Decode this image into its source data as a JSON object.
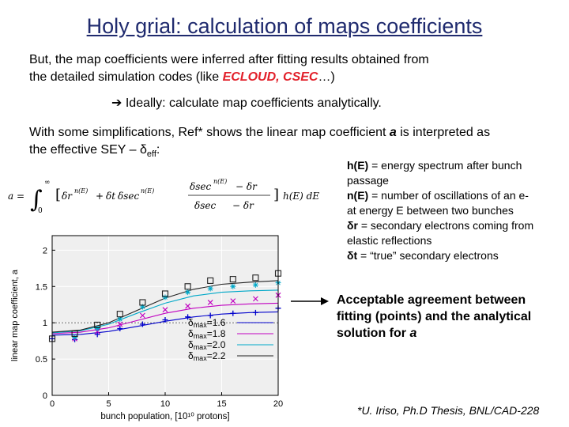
{
  "title": "Holy grial: calculation of maps coefficients",
  "intro": {
    "line1": "But, the map coefficients were inferred after fitting results obtained from",
    "line2_pre": "the detailed simulation codes (like ",
    "line2_red": "ECLOUD, CSEC",
    "line2_post": "…)"
  },
  "ideally": {
    "arrow": "➔",
    "text": "Ideally: calculate map coefficients analytically."
  },
  "simplif": {
    "line1_pre": "With some simplifications, Ref* shows the linear map coefficient ",
    "line1_var": "a",
    "line1_post": " is interpreted as",
    "line2_pre": "the effective SEY – ",
    "delta": "δ",
    "sub": "eff",
    "colon": ":"
  },
  "notes": [
    {
      "term": "h(E)",
      "text": " = energy spectrum after bunch"
    },
    {
      "term": "",
      "text": "passage"
    },
    {
      "term": "n(E)",
      "text": " = number of oscillations of an e-"
    },
    {
      "term": "",
      "text": "at energy E between two bunches"
    },
    {
      "term": "δr",
      "text": " = secondary electrons coming from"
    },
    {
      "term": "",
      "text": "elastic reflections"
    },
    {
      "term": "δt",
      "text": " = “true” secondary electrons"
    }
  ],
  "conclusion": {
    "line1": "Acceptable agreement between",
    "line2": "fitting (points) and the analytical",
    "line3_pre": "solution for ",
    "line3_var": "a"
  },
  "reference": "*U. Iriso, Ph.D Thesis, BNL/CAD-228",
  "formula": {
    "lhs": "a = ",
    "int_lo": "0",
    "int_hi": "∞",
    "dr": "δr",
    "dr_sup": "n(E)",
    "plus": "+",
    "dt": "δt",
    "dsec": "δsec",
    "dsec_sup": "n(E)",
    "frac_num_a": "δsec",
    "frac_num_sup": "n(E)",
    "frac_num_b": "− δr",
    "frac_den_a": "δsec",
    "frac_den_b": "− δr",
    "tail": "h(E) dE"
  },
  "chart_data": {
    "type": "line",
    "xlabel": "bunch population, [10¹⁰ protons]",
    "ylabel": "linear map coefficient, a",
    "xlim": [
      0,
      20
    ],
    "ylim": [
      0,
      2.2
    ],
    "xticks": [
      "0",
      "5",
      "10",
      "15",
      "20"
    ],
    "yticks": [
      "0",
      "0.5",
      "1",
      "1.5",
      "2"
    ],
    "reference_line_y": 1.0,
    "series": [
      {
        "name": "δmax=1.6",
        "color": "#0000cc",
        "line_x": [
          0,
          2.5,
          5,
          7.5,
          10,
          12.5,
          15,
          17.5,
          20
        ],
        "line_y": [
          0.83,
          0.84,
          0.88,
          0.95,
          1.02,
          1.08,
          1.12,
          1.14,
          1.15
        ],
        "marker": "+",
        "points": [
          [
            0,
            0.78
          ],
          [
            2,
            0.77
          ],
          [
            4,
            0.84
          ],
          [
            6,
            0.92
          ],
          [
            8,
            0.98
          ],
          [
            10,
            1.04
          ],
          [
            12,
            1.08
          ],
          [
            14,
            1.1
          ],
          [
            16,
            1.13
          ],
          [
            18,
            1.14
          ],
          [
            20,
            1.2
          ]
        ]
      },
      {
        "name": "δmax=1.8",
        "color": "#c000c0",
        "line_x": [
          0,
          2.5,
          5,
          7.5,
          10,
          12.5,
          15,
          17.5,
          20
        ],
        "line_y": [
          0.85,
          0.87,
          0.93,
          1.03,
          1.13,
          1.2,
          1.24,
          1.26,
          1.27
        ],
        "marker": "x",
        "points": [
          [
            2,
            0.78
          ],
          [
            4,
            0.88
          ],
          [
            6,
            0.98
          ],
          [
            8,
            1.1
          ],
          [
            10,
            1.18
          ],
          [
            12,
            1.23
          ],
          [
            14,
            1.28
          ],
          [
            16,
            1.3
          ],
          [
            18,
            1.33
          ],
          [
            20,
            1.38
          ]
        ]
      },
      {
        "name": "δmax=2.0",
        "color": "#00a8c8",
        "line_x": [
          0,
          2.5,
          5,
          7.5,
          10,
          12.5,
          15,
          17.5,
          20
        ],
        "line_y": [
          0.86,
          0.89,
          0.98,
          1.13,
          1.27,
          1.37,
          1.42,
          1.44,
          1.45
        ],
        "marker": "*",
        "points": [
          [
            2,
            0.8
          ],
          [
            4,
            0.92
          ],
          [
            6,
            1.05
          ],
          [
            8,
            1.22
          ],
          [
            10,
            1.35
          ],
          [
            12,
            1.42
          ],
          [
            14,
            1.47
          ],
          [
            16,
            1.5
          ],
          [
            18,
            1.52
          ],
          [
            20,
            1.55
          ]
        ]
      },
      {
        "name": "δmax=2.2",
        "color": "#222222",
        "line_x": [
          0,
          2.5,
          5,
          7.5,
          10,
          12.5,
          15,
          17.5,
          20
        ],
        "line_y": [
          0.87,
          0.9,
          1.0,
          1.17,
          1.34,
          1.46,
          1.53,
          1.56,
          1.58
        ],
        "marker": "square",
        "points": [
          [
            0,
            0.78
          ],
          [
            2,
            0.85
          ],
          [
            4,
            0.97
          ],
          [
            6,
            1.12
          ],
          [
            8,
            1.28
          ],
          [
            10,
            1.4
          ],
          [
            12,
            1.5
          ],
          [
            14,
            1.58
          ],
          [
            16,
            1.6
          ],
          [
            18,
            1.62
          ],
          [
            20,
            1.68
          ]
        ]
      }
    ],
    "legend_position": "bottom-right"
  },
  "colors": {
    "title": "#1f2a6e",
    "highlight": "#e2202a"
  }
}
